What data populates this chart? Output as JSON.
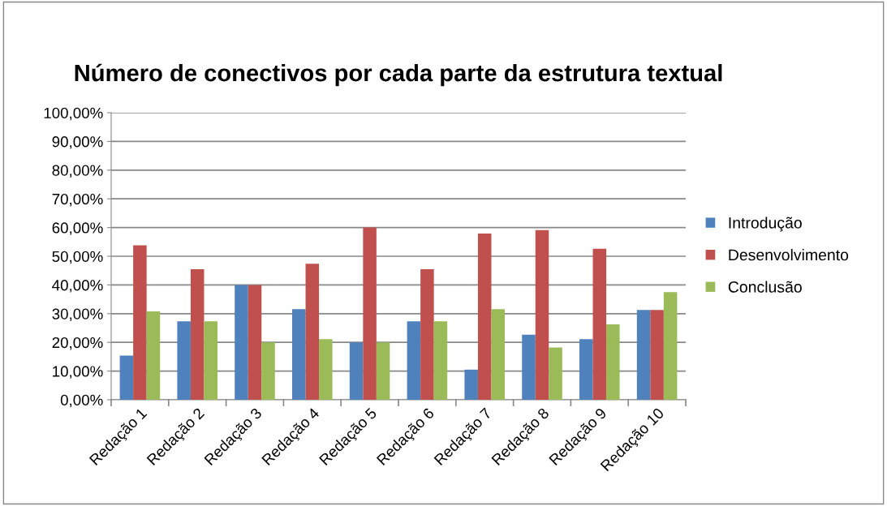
{
  "chart_data": {
    "type": "bar",
    "title": "Número de conectivos por cada parte da estrutura textual",
    "categories": [
      "Redação 1",
      "Redação 2",
      "Redação 3",
      "Redação 4",
      "Redação 5",
      "Redação 6",
      "Redação 7",
      "Redação 8",
      "Redação 9",
      "Redação 10"
    ],
    "series": [
      {
        "name": "Introdução",
        "color": "#4f81bd",
        "values": [
          15.4,
          27.3,
          40.0,
          31.6,
          20.0,
          27.3,
          10.5,
          22.7,
          21.1,
          31.3
        ]
      },
      {
        "name": "Desenvolvimento",
        "color": "#c0504d",
        "values": [
          53.8,
          45.5,
          40.0,
          47.4,
          60.0,
          45.5,
          57.9,
          59.1,
          52.6,
          31.3
        ]
      },
      {
        "name": "Conclusão",
        "color": "#9bbb59",
        "values": [
          30.8,
          27.3,
          20.0,
          21.1,
          20.0,
          27.3,
          31.6,
          18.2,
          26.3,
          37.5
        ]
      }
    ],
    "ylim": [
      0,
      100
    ],
    "yticks": [
      {
        "value": 0,
        "label": "0,00%"
      },
      {
        "value": 10,
        "label": "10,00%"
      },
      {
        "value": 20,
        "label": "20,00%"
      },
      {
        "value": 30,
        "label": "30,00%"
      },
      {
        "value": 40,
        "label": "40,00%"
      },
      {
        "value": 50,
        "label": "50,00%"
      },
      {
        "value": 60,
        "label": "60,00%"
      },
      {
        "value": 70,
        "label": "70,00%"
      },
      {
        "value": 80,
        "label": "80,00%"
      },
      {
        "value": 90,
        "label": "90,00%"
      },
      {
        "value": 100,
        "label": "100,00%"
      }
    ],
    "grid": "y",
    "legend": "right"
  }
}
